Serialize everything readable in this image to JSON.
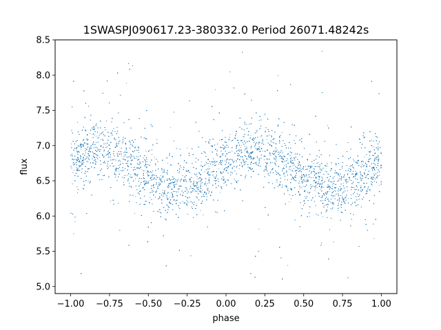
{
  "chart_data": {
    "type": "scatter",
    "title": "1SWASPJ090617.23-380332.0 Period 26071.48242s",
    "xlabel": "phase",
    "ylabel": "flux",
    "xlim": [
      -1.1,
      1.1
    ],
    "ylim": [
      4.9,
      8.5
    ],
    "xticks": [
      -1.0,
      -0.75,
      -0.5,
      -0.25,
      0.0,
      0.25,
      0.5,
      0.75,
      1.0
    ],
    "xtick_labels": [
      "−1.00",
      "−0.75",
      "−0.50",
      "−0.25",
      "0.00",
      "0.25",
      "0.50",
      "0.75",
      "1.00"
    ],
    "yticks": [
      5.0,
      5.5,
      6.0,
      6.5,
      7.0,
      7.5,
      8.0,
      8.5
    ],
    "ytick_labels": [
      "5.0",
      "5.5",
      "6.0",
      "6.5",
      "7.0",
      "7.5",
      "8.0",
      "8.5"
    ],
    "grid": false,
    "marker_color": "#1f77b4",
    "series": [
      {
        "model": "sinusoid",
        "x_range": [
          -1.0,
          1.0
        ],
        "period_in_phase": 1.0,
        "mean_flux": 6.67,
        "amplitude": 0.27,
        "peak_phase": 0.18,
        "trough_phase": -0.32,
        "scatter_std": 0.2,
        "point_count": 14000,
        "outlier_range": [
          5.05,
          8.35
        ]
      }
    ]
  }
}
